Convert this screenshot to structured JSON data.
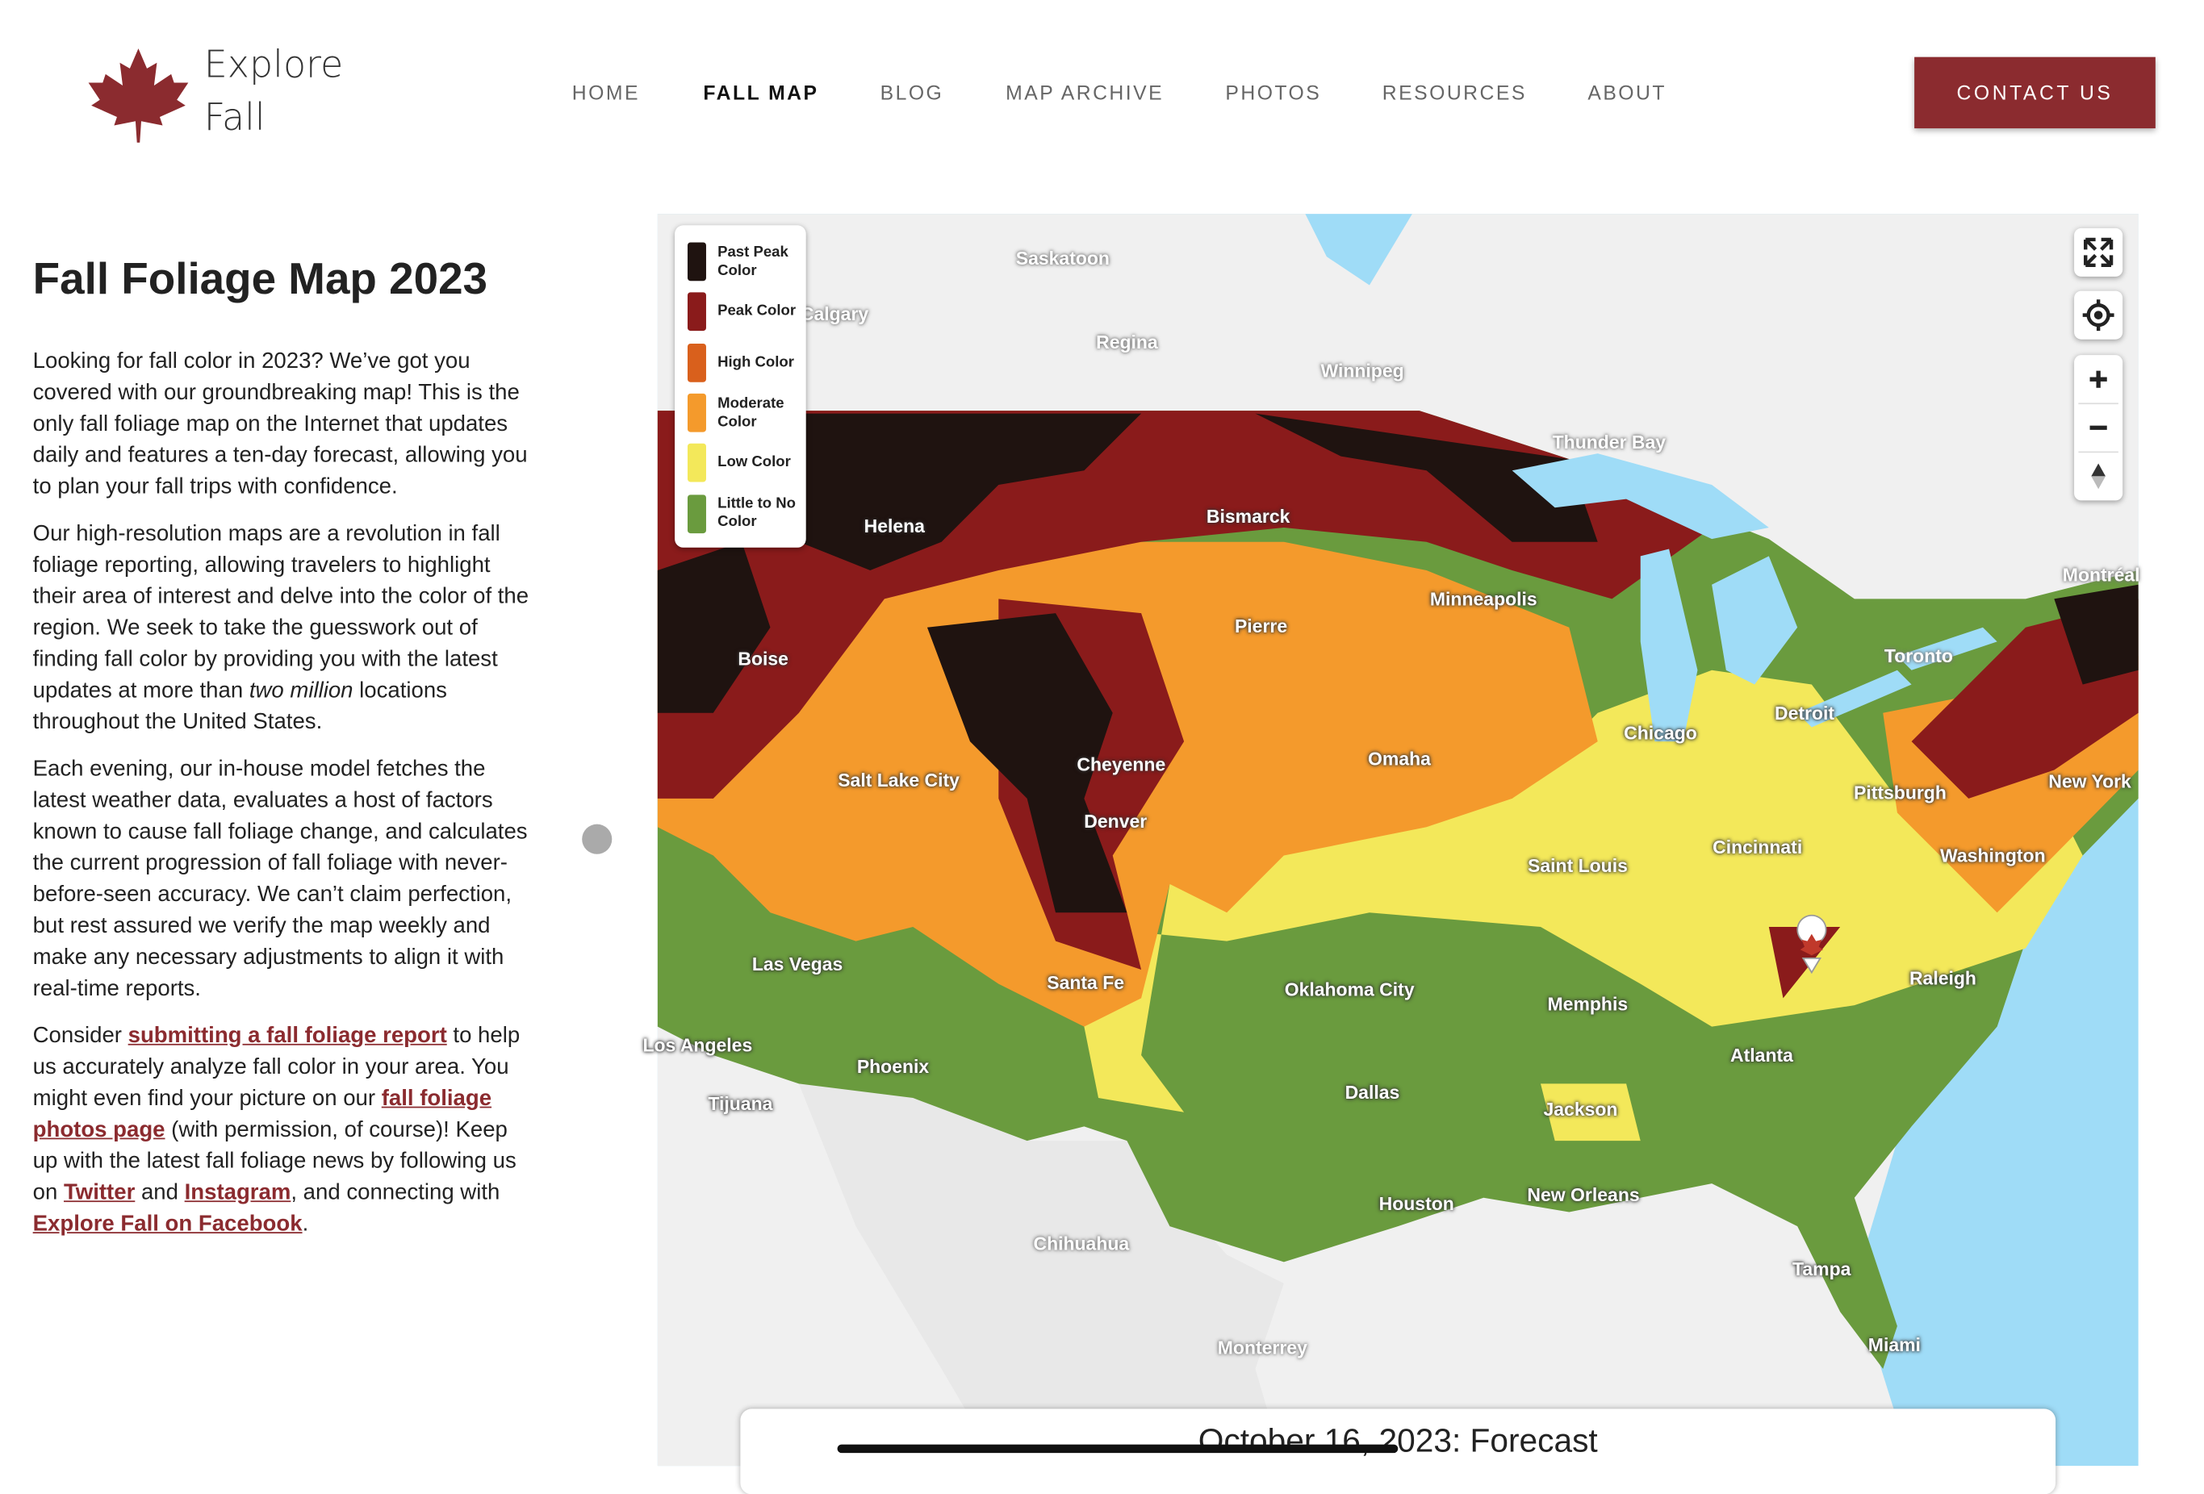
{
  "header": {
    "logo_text": "Explore Fall",
    "nav": [
      "HOME",
      "FALL MAP",
      "BLOG",
      "MAP ARCHIVE",
      "PHOTOS",
      "RESOURCES",
      "ABOUT"
    ],
    "button": "CONTACT US"
  },
  "article": {
    "title": "Fall Foliage Map 2023",
    "paragraphs": [
      [
        "Looking for fall color in 2023? We’ve got you covered with our groundbreaking map! This is the only fall foliage map on the Internet that updates daily and features a ten-day forecast, allowing you to plan your fall trips with confidence."
      ],
      [
        "Our high-resolution maps are a revolution in fall foliage reporting, allowing travelers to highlight their area of interest and delve into the color of the region. We seek to take the guesswork out of finding fall color by providing you with the latest updates at more than ",
        "two million",
        " locations throughout the United States."
      ],
      [
        "Each evening, our in-house model fetches the latest weather data, evaluates a host of factors known to cause fall foliage change, and calculates the current progression of fall foliage with never-before-seen accuracy. We can’t claim perfection, but rest assured we verify the map weekly and make any necessary adjustments to align it with real-time reports."
      ],
      [
        "Consider ",
        "submitting a fall foliage report",
        " to help us accurately analyze fall color in your area. You might even find your picture on our ",
        "fall foliage photos page",
        " (with permission, of course)! Keep up with the latest fall foliage news by following us on ",
        "Twitter",
        " and ",
        "Instagram",
        ", and connecting with ",
        "Explore Fall on Facebook",
        "."
      ]
    ]
  },
  "map": {
    "legend": [
      "Past Peak Color",
      "Peak Color",
      "High Color",
      "Moderate Color",
      "Low Color",
      "Little to No Color"
    ],
    "cities": [
      "Saskatoon",
      "Calgary",
      "Regina",
      "Winnipeg",
      "Thunder Bay",
      "Helena",
      "Bismarck",
      "Minneapolis",
      "Montréal",
      "Pierre",
      "Boise",
      "Toronto",
      "Detroit",
      "Chicago",
      "Cheyenne",
      "Omaha",
      "Salt Lake City",
      "Pittsburgh",
      "New York",
      "Denver",
      "Saint Louis",
      "Cincinnati",
      "Washington",
      "Las Vegas",
      "Santa Fe",
      "Oklahoma City",
      "Memphis",
      "Raleigh",
      "Los Angeles",
      "Atlanta",
      "Phoenix",
      "Tijuana",
      "Dallas",
      "Jackson",
      "New Orleans",
      "Houston",
      "Chihuahua",
      "Tampa",
      "Miami",
      "Monterrey"
    ],
    "forecast_title": "October 16, 2023: Forecast"
  }
}
